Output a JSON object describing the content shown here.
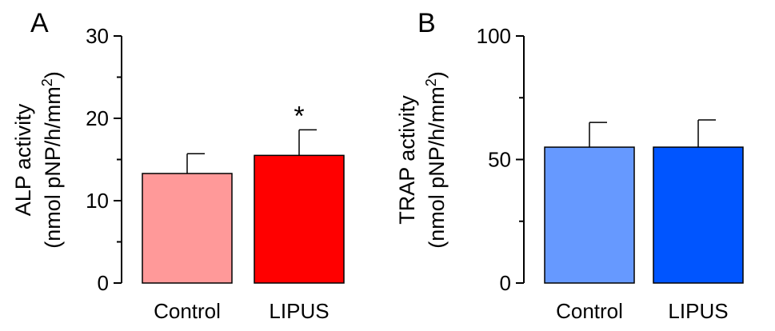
{
  "panels": [
    {
      "letter": "A",
      "ylabel_line1": "ALP activity",
      "ylabel_line2_prefix": "(nmol pNP/h/mm",
      "ylabel_line2_sup": "2",
      "ylabel_line2_suffix": ")"
    },
    {
      "letter": "B",
      "ylabel_line1": "TRAP activity",
      "ylabel_line2_prefix": "(nmol pNP/h/mm",
      "ylabel_line2_sup": "2",
      "ylabel_line2_suffix": ")"
    }
  ],
  "chart_data": [
    {
      "type": "bar",
      "panel": "A",
      "categories": [
        "Control",
        "LIPUS"
      ],
      "values": [
        13.3,
        15.5
      ],
      "errors": [
        2.4,
        3.1
      ],
      "bar_colors": [
        "#ff9999",
        "#ff0000"
      ],
      "annotations": [
        "",
        "*"
      ],
      "ylim": [
        0,
        30
      ],
      "yticks": [
        0,
        10,
        20,
        30
      ],
      "ylabel": "ALP activity (nmol pNP/h/mm2)",
      "grid": false
    },
    {
      "type": "bar",
      "panel": "B",
      "categories": [
        "Control",
        "LIPUS"
      ],
      "values": [
        55,
        55
      ],
      "errors": [
        10,
        11
      ],
      "bar_colors": [
        "#6699ff",
        "#0055ff"
      ],
      "annotations": [
        "",
        ""
      ],
      "ylim": [
        0,
        100
      ],
      "yticks": [
        0,
        50,
        100
      ],
      "ylabel": "TRAP activity (nmol pNP/h/mm2)",
      "grid": false
    }
  ]
}
